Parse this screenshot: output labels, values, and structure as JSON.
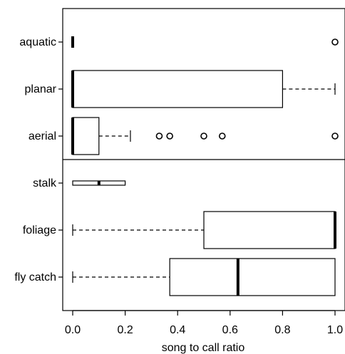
{
  "chart_data": {
    "type": "boxplot",
    "title": "",
    "xlabel": "song to call ratio",
    "ylabel": "",
    "xlim": [
      0.0,
      1.0
    ],
    "xticks": [
      0.0,
      0.2,
      0.4,
      0.6,
      0.8,
      1.0
    ],
    "xtick_labels": [
      "0.0",
      "0.2",
      "0.4",
      "0.6",
      "0.8",
      "1.0"
    ],
    "panels": [
      {
        "groups": [
          {
            "label": "aquatic",
            "min": 0.0,
            "q1": 0.0,
            "median": 0.0,
            "q3": 0.0,
            "max": 0.0,
            "outliers": [
              1.0
            ]
          },
          {
            "label": "planar",
            "min": 0.0,
            "q1": 0.0,
            "median": 0.0,
            "q3": 0.8,
            "max": 1.0,
            "outliers": []
          },
          {
            "label": "aerial",
            "min": 0.0,
            "q1": 0.0,
            "median": 0.0,
            "q3": 0.1,
            "max": 0.22,
            "outliers": [
              0.33,
              0.37,
              0.5,
              0.57,
              1.0
            ]
          }
        ]
      },
      {
        "groups": [
          {
            "label": "stalk",
            "min": 0.0,
            "q1": 0.0,
            "median": 0.1,
            "q3": 0.2,
            "max": 0.2,
            "outliers": []
          },
          {
            "label": "foliage",
            "min": 0.0,
            "q1": 0.5,
            "median": 1.0,
            "q3": 1.0,
            "max": 1.0,
            "outliers": []
          },
          {
            "label": "fly catch",
            "min": 0.0,
            "q1": 0.37,
            "median": 0.63,
            "q3": 1.0,
            "max": 1.0,
            "outliers": []
          }
        ]
      }
    ],
    "grid": false,
    "legend": "none"
  }
}
